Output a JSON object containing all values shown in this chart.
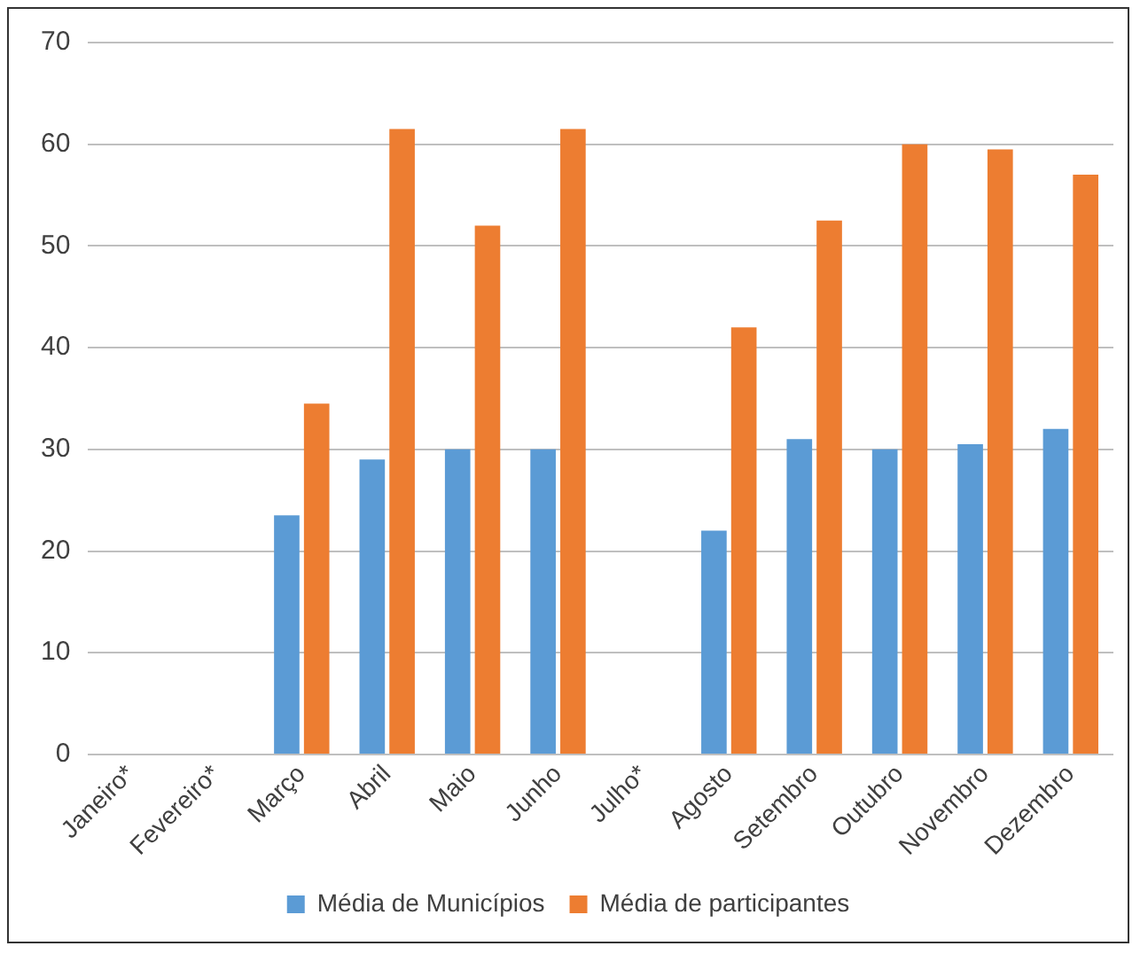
{
  "chart_data": {
    "type": "bar",
    "categories": [
      "Janeiro*",
      "Fevereiro*",
      "Março",
      "Abril",
      "Maio",
      "Junho",
      "Julho*",
      "Agosto",
      "Setembro",
      "Outubro",
      "Novembro",
      "Dezembro"
    ],
    "series": [
      {
        "name": "Média de Municípios",
        "color": "#5b9bd5",
        "values": [
          null,
          null,
          23.5,
          29,
          30,
          30,
          null,
          22,
          31,
          30,
          30.5,
          32
        ]
      },
      {
        "name": "Média de participantes",
        "color": "#ed7d31",
        "values": [
          null,
          null,
          34.5,
          61.5,
          52,
          61.5,
          null,
          42,
          52.5,
          60,
          59.5,
          57
        ]
      }
    ],
    "ylim": [
      0,
      70
    ],
    "yticks": [
      0,
      10,
      20,
      30,
      40,
      50,
      60,
      70
    ],
    "grid": "y",
    "legend": "bottom"
  }
}
